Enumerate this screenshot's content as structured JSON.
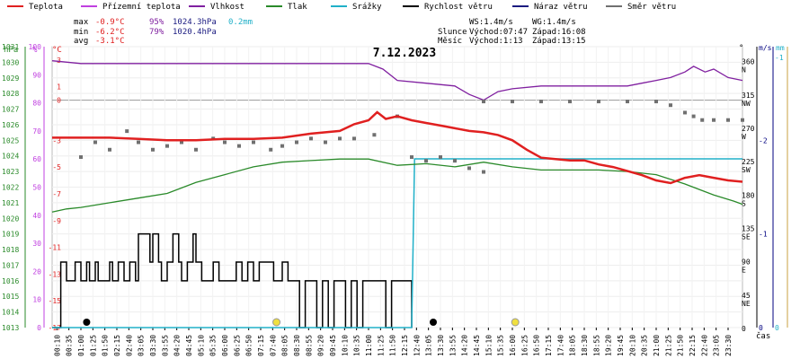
{
  "chart_data": {
    "type": "line",
    "title": "7.12.2023",
    "x_label": "čas",
    "x_ticks": [
      "00:10",
      "00:35",
      "01:00",
      "01:25",
      "01:50",
      "02:15",
      "02:40",
      "03:05",
      "03:30",
      "03:55",
      "04:20",
      "04:45",
      "05:10",
      "05:35",
      "06:00",
      "06:25",
      "06:50",
      "07:15",
      "07:40",
      "08:05",
      "08:30",
      "08:55",
      "09:20",
      "09:45",
      "10:10",
      "10:35",
      "11:00",
      "11:25",
      "11:50",
      "12:15",
      "12:40",
      "13:05",
      "13:30",
      "13:55",
      "14:20",
      "14:45",
      "15:10",
      "15:35",
      "16:00",
      "16:25",
      "16:50",
      "17:15",
      "17:40",
      "18:05",
      "18:30",
      "18:55",
      "19:20",
      "19:45",
      "20:10",
      "20:35",
      "21:00",
      "21:25",
      "21:50",
      "22:15",
      "22:40",
      "23:05",
      "23:30"
    ],
    "legend": [
      {
        "name": "Teplota",
        "color": "#e02020"
      },
      {
        "name": "Přízemní teplota",
        "color": "#c040e0"
      },
      {
        "name": "Vlhkost",
        "color": "#8020a0"
      },
      {
        "name": "Tlak",
        "color": "#2a8a2a"
      },
      {
        "name": "Srážky",
        "color": "#20b0c8"
      },
      {
        "name": "Rychlost větru",
        "color": "#000000"
      },
      {
        "name": "Náraz větru",
        "color": "#1a1a80"
      },
      {
        "name": "Směr větru",
        "color": "#707070"
      }
    ],
    "stats": {
      "max": {
        "label": "max",
        "temp": "-0.9°C",
        "hum": "95%",
        "press": "1024.3hPa",
        "rain": "0.2mm"
      },
      "min": {
        "label": "min",
        "temp": "-6.2°C",
        "hum": "79%",
        "press": "1020.4hPa"
      },
      "avg": {
        "label": "avg",
        "temp": "-3.1°C"
      }
    },
    "info": {
      "ws": "WS:1.4m/s",
      "wg": "WG:1.4m/s",
      "sun": "Slunce",
      "sun_rise": "Východ:07:47",
      "sun_set": "Západ:16:08",
      "moon": "Měsíc",
      "moon_rise": "Východ:1:13",
      "moon_set": "Západ:13:15"
    },
    "axes": {
      "hpa": {
        "unit": "hPa",
        "color": "#2a8a2a",
        "ticks": [
          "1031",
          "1030",
          "1029",
          "1028",
          "1027",
          "1026",
          "1025",
          "1024",
          "1023",
          "1022",
          "1021",
          "1020",
          "1019",
          "1018",
          "1017",
          "1016",
          "1015",
          "1014",
          "1013"
        ],
        "range": [
          1013,
          1031
        ]
      },
      "percent": {
        "unit": "%",
        "color": "#c040e0",
        "ticks": [
          "100",
          "90",
          "80",
          "70",
          "60",
          "50",
          "40",
          "30",
          "20",
          "10",
          "0"
        ],
        "range": [
          0,
          100
        ]
      },
      "celsius": {
        "unit": "°C",
        "color": "#e02020",
        "ticks": [
          "3",
          "1",
          "0",
          "-3",
          "-5",
          "-7",
          "-9",
          "-11",
          "-13",
          "-15",
          "-17"
        ],
        "range": [
          -17,
          4
        ]
      },
      "direction": {
        "unit": "°",
        "color": "#000000",
        "ticks": [
          "360",
          "315",
          "270",
          "225",
          "180",
          "135",
          "90",
          "45",
          "0"
        ],
        "labels": [
          "N",
          "NW",
          "W",
          "SW",
          "S",
          "SE",
          "E",
          "NE",
          ""
        ],
        "range": [
          0,
          360
        ]
      },
      "speed": {
        "unit": "m/s",
        "color": "#000080",
        "ticks": [
          "-2",
          "-1",
          "0"
        ],
        "range": [
          0,
          3
        ]
      },
      "rain": {
        "unit": "mm",
        "color": "#20b0c8",
        "ticks": [
          "-1",
          "0"
        ],
        "range": [
          0,
          1
        ]
      }
    },
    "series_temp": {
      "name": "Teplota",
      "color": "#e02020",
      "t": [
        0,
        1,
        2,
        3,
        4,
        5,
        6,
        7,
        8,
        9,
        10,
        10.5,
        11,
        11.3,
        11.6,
        12,
        12.5,
        13,
        13.5,
        14,
        14.5,
        15,
        15.5,
        16,
        16.5,
        17,
        17.5,
        18,
        18.5,
        19,
        19.5,
        20,
        20.5,
        21,
        21.5,
        22,
        22.5,
        23,
        23.5,
        24
      ],
      "values": [
        -2.8,
        -2.8,
        -2.8,
        -2.9,
        -3.0,
        -3.0,
        -2.9,
        -2.9,
        -2.8,
        -2.5,
        -2.3,
        -1.8,
        -1.5,
        -0.9,
        -1.4,
        -1.2,
        -1.5,
        -1.7,
        -1.9,
        -2.1,
        -2.3,
        -2.4,
        -2.6,
        -3.0,
        -3.7,
        -4.3,
        -4.4,
        -4.5,
        -4.5,
        -4.8,
        -5.0,
        -5.3,
        -5.6,
        -6.0,
        -6.2,
        -5.8,
        -5.6,
        -5.8,
        -6.0,
        -6.1
      ]
    },
    "series_hum": {
      "name": "Vlhkost",
      "color": "#8020a0",
      "t": [
        0,
        1,
        2,
        3,
        4,
        5,
        6,
        7,
        8,
        9,
        10,
        11,
        11.5,
        12,
        13,
        14,
        14.5,
        15,
        15.5,
        16,
        17,
        18,
        19,
        20,
        20.5,
        21,
        21.5,
        22,
        22.3,
        22.7,
        23,
        23.5,
        24
      ],
      "values": [
        95,
        94,
        94,
        94,
        94,
        94,
        94,
        94,
        94,
        94,
        94,
        94,
        92,
        88,
        87,
        86,
        83,
        81,
        84,
        85,
        86,
        86,
        86,
        86,
        87,
        88,
        89,
        91,
        93,
        91,
        92,
        89,
        88
      ]
    },
    "series_press": {
      "name": "Tlak",
      "color": "#2a8a2a",
      "t": [
        0,
        0.5,
        1,
        2,
        3,
        4,
        5,
        6,
        7,
        8,
        9,
        10,
        11,
        12,
        13,
        14,
        15,
        16,
        17,
        18,
        19,
        20,
        21,
        22,
        23,
        23.7,
        24
      ],
      "values": [
        1020.4,
        1020.6,
        1020.7,
        1021.0,
        1021.3,
        1021.6,
        1022.3,
        1022.8,
        1023.3,
        1023.6,
        1023.7,
        1023.8,
        1023.8,
        1023.4,
        1023.5,
        1023.3,
        1023.6,
        1023.3,
        1023.1,
        1023.1,
        1023.1,
        1023.0,
        1022.8,
        1022.2,
        1021.5,
        1021.1,
        1020.9
      ]
    },
    "series_rain": {
      "name": "Srážky",
      "color": "#20b0c8",
      "t": [
        0,
        12.5,
        12.6,
        24
      ],
      "values": [
        0,
        0,
        0.2,
        0.2
      ]
    },
    "series_wind": {
      "name": "Rychlost větru",
      "color": "#000000",
      "t": [
        0,
        0.3,
        0.5,
        0.8,
        1.0,
        1.2,
        1.3,
        1.5,
        1.6,
        1.8,
        2.0,
        2.1,
        2.3,
        2.5,
        2.7,
        2.9,
        3.0,
        3.2,
        3.4,
        3.5,
        3.7,
        3.8,
        4.0,
        4.2,
        4.4,
        4.5,
        4.7,
        4.9,
        5.0,
        5.2,
        5.4,
        5.6,
        5.8,
        6.0,
        6.2,
        6.4,
        6.6,
        6.8,
        7.0,
        7.2,
        7.5,
        7.7,
        8.0,
        8.2,
        8.4,
        8.6,
        8.8,
        9.0,
        9.2,
        9.4,
        9.6,
        9.8,
        10.0,
        10.2,
        10.4,
        10.6,
        10.8,
        11.0,
        11.2,
        11.4,
        11.6,
        11.8,
        12.0,
        12.2,
        12.4,
        12.5
      ],
      "values": [
        0,
        0.7,
        0.5,
        0.7,
        0.5,
        0.7,
        0.5,
        0.7,
        0.5,
        0.5,
        0.7,
        0.5,
        0.7,
        0.5,
        0.7,
        0.5,
        1.0,
        1.0,
        0.7,
        1.0,
        0.7,
        0.5,
        0.7,
        1.0,
        0.7,
        0.5,
        0.7,
        1.0,
        0.7,
        0.5,
        0.5,
        0.7,
        0.5,
        0.5,
        0.5,
        0.7,
        0.5,
        0.7,
        0.5,
        0.7,
        0.7,
        0.5,
        0.7,
        0.5,
        0.5,
        0,
        0.5,
        0.5,
        0,
        0.5,
        0,
        0.5,
        0.5,
        0,
        0.5,
        0,
        0.5,
        0.5,
        0.5,
        0.5,
        0,
        0.5,
        0.5,
        0.5,
        0.5,
        0
      ]
    },
    "series_dir": {
      "name": "Směr větru",
      "color": "#707070",
      "t": [
        15,
        16,
        17,
        18,
        19,
        20,
        21,
        21.5,
        22,
        22.3,
        22.6,
        23,
        23.5,
        24
      ],
      "values": [
        305,
        305,
        305,
        305,
        305,
        305,
        305,
        300,
        290,
        285,
        280,
        280,
        280,
        280
      ]
    },
    "markers": {
      "sun_rise_t": 7.8,
      "sun_set_t": 16.1,
      "moon_rise_t": 1.2,
      "moon_set_t": 13.25
    }
  }
}
